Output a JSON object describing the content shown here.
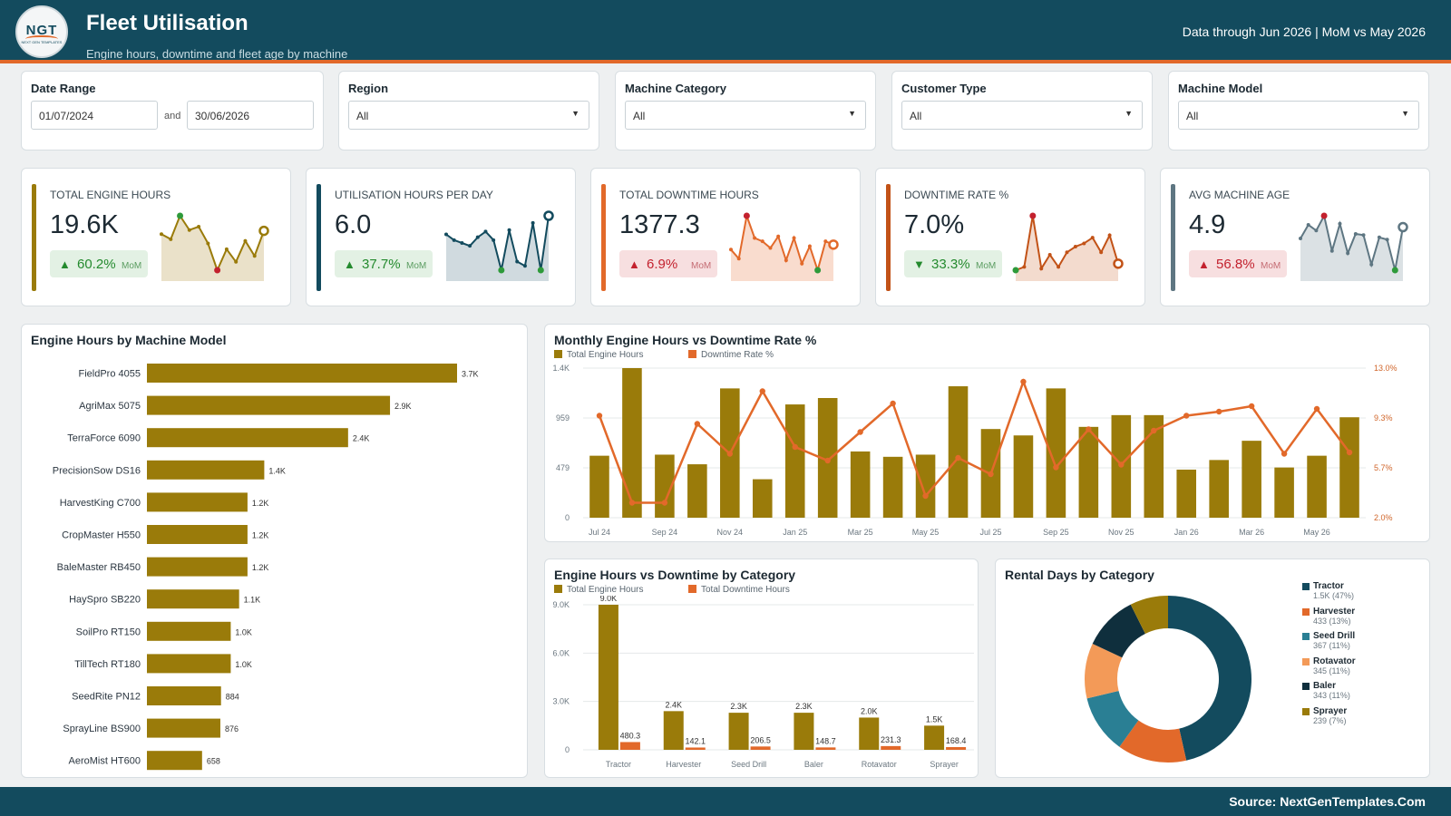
{
  "header": {
    "logo_text": "NGT",
    "logo_subtext": "NEXT GEN TEMPLATES",
    "title": "Fleet Utilisation",
    "subtitle": "Engine hours, downtime and fleet age by machine",
    "data_through": "Data through Jun 2026 | MoM vs May 2026"
  },
  "filters": {
    "date_range": {
      "label": "Date Range",
      "start": "01/07/2024",
      "joiner": "and",
      "end": "30/06/2026"
    },
    "region": {
      "label": "Region",
      "value": "All"
    },
    "machine_category": {
      "label": "Machine Category",
      "value": "All"
    },
    "customer_type": {
      "label": "Customer Type",
      "value": "All"
    },
    "machine_model": {
      "label": "Machine Model",
      "value": "All"
    }
  },
  "kpis": [
    {
      "label": "TOTAL ENGINE HOURS",
      "value": "19.6K",
      "change": "60.2%",
      "direction": "up",
      "sentiment": "good",
      "mom": "MoM",
      "color": "#9a7b0a",
      "fill": "#e6dcc0",
      "spark": [
        6.4,
        5.8,
        8.6,
        6.9,
        7.3,
        5.3,
        2.1,
        4.6,
        3.1,
        5.6,
        3.8,
        6.8
      ]
    },
    {
      "label": "UTILISATION HOURS PER DAY",
      "value": "6.0",
      "change": "37.7%",
      "direction": "up",
      "sentiment": "good",
      "mom": "MoM",
      "color": "#134b5e",
      "fill": "#c8d4d9",
      "spark": [
        6.1,
        5.7,
        5.5,
        5.3,
        5.9,
        6.3,
        5.7,
        3.6,
        6.4,
        4.2,
        3.9,
        6.9,
        3.6,
        7.4
      ]
    },
    {
      "label": "TOTAL DOWNTIME HOURS",
      "value": "1377.3",
      "change": "6.9%",
      "direction": "up",
      "sentiment": "bad",
      "mom": "MoM",
      "color": "#e2692a",
      "fill": "#f8d6c5",
      "spark": [
        5.2,
        4.1,
        9.3,
        6.6,
        6.2,
        5.4,
        6.8,
        3.9,
        6.6,
        3.5,
        5.6,
        2.7,
        6.2,
        5.8
      ]
    },
    {
      "label": "DOWNTIME RATE %",
      "value": "7.0%",
      "change": "33.3%",
      "direction": "down",
      "sentiment": "good",
      "mom": "MoM",
      "color": "#c25217",
      "fill": "#f1d5c6",
      "spark": [
        6.2,
        6.6,
        12.9,
        6.4,
        8.1,
        6.6,
        8.4,
        9.1,
        9.5,
        10.2,
        8.4,
        10.5,
        7.0
      ]
    },
    {
      "label": "AVG MACHINE AGE",
      "value": "4.9",
      "change": "56.8%",
      "direction": "up",
      "sentiment": "bad",
      "mom": "MoM",
      "color": "#5e7682",
      "fill": "#d5dcdf",
      "spark": [
        5.9,
        7.1,
        6.6,
        7.9,
        4.8,
        7.2,
        4.6,
        6.3,
        6.2,
        3.6,
        6.0,
        5.8,
        3.1,
        6.9
      ]
    }
  ],
  "bar_chart": {
    "title": "Engine Hours by Machine Model",
    "color": "#9a7b0a",
    "chart_data": {
      "type": "bar",
      "orientation": "horizontal",
      "categories": [
        "FieldPro 4055",
        "AgriMax 5075",
        "TerraForce 6090",
        "PrecisionSow DS16",
        "HarvestKing C700",
        "CropMaster H550",
        "BaleMaster RB450",
        "HaySpro SB220",
        "SoilPro RT150",
        "TillTech RT180",
        "SeedRite PN12",
        "SprayLine BS900",
        "AeroMist HT600"
      ],
      "values": [
        3700,
        2900,
        2400,
        1400,
        1200,
        1200,
        1200,
        1100,
        1000,
        1000,
        884,
        876,
        658
      ],
      "labels": [
        "3.7K",
        "2.9K",
        "2.4K",
        "1.4K",
        "1.2K",
        "1.2K",
        "1.2K",
        "1.1K",
        "1.0K",
        "1.0K",
        "884",
        "876",
        "658"
      ]
    }
  },
  "combo_chart": {
    "title": "Monthly Engine Hours vs Downtime Rate %",
    "chart_data": {
      "type": "bar",
      "x": [
        "Jul 24",
        "Aug 24",
        "Sep 24",
        "Oct 24",
        "Nov 24",
        "Dec 24",
        "Jan 25",
        "Feb 25",
        "Mar 25",
        "Apr 25",
        "May 25",
        "Jun 25",
        "Jul 25",
        "Aug 25",
        "Sep 25",
        "Oct 25",
        "Nov 25",
        "Dec 25",
        "Jan 26",
        "Feb 26",
        "Mar 26",
        "Apr 26",
        "May 26",
        "Jun 26"
      ],
      "x_tick_labels": [
        "Jul 24",
        "Sep 24",
        "Nov 24",
        "Jan 25",
        "Mar 25",
        "May 25",
        "Jul 25",
        "Sep 25",
        "Nov 25",
        "Jan 26",
        "Mar 26",
        "May 26"
      ],
      "series": [
        {
          "name": "Total Engine Hours",
          "type": "bar",
          "axis": "left",
          "color": "#9a7b0a",
          "values": [
            580,
            1400,
            590,
            500,
            1210,
            360,
            1060,
            1120,
            620,
            570,
            590,
            1230,
            830,
            770,
            1210,
            850,
            960,
            960,
            450,
            540,
            720,
            470,
            580,
            940
          ]
        },
        {
          "name": "Downtime Rate %",
          "type": "line",
          "axis": "right",
          "color": "#e2692a",
          "values": [
            9.5,
            3.1,
            3.1,
            8.9,
            6.7,
            11.3,
            7.2,
            6.2,
            8.3,
            10.4,
            3.6,
            6.4,
            5.2,
            12.0,
            5.7,
            8.5,
            5.9,
            8.4,
            9.5,
            9.8,
            10.2,
            6.7,
            10.0,
            6.8
          ]
        }
      ],
      "y_left": {
        "min": 0,
        "max": 1400,
        "ticks": [
          "0",
          "479",
          "959",
          "1.4K"
        ]
      },
      "y_right": {
        "min": 2.0,
        "max": 13.0,
        "ticks": [
          "2.0%",
          "5.7%",
          "9.3%",
          "13.0%"
        ]
      },
      "legend": "top-left"
    }
  },
  "category_chart": {
    "title": "Engine Hours vs Downtime by Category",
    "chart_data": {
      "type": "bar",
      "categories": [
        "Tractor",
        "Harvester",
        "Seed Drill",
        "Baler",
        "Rotavator",
        "Sprayer"
      ],
      "series": [
        {
          "name": "Total Engine Hours",
          "color": "#9a7b0a",
          "values": [
            9000,
            2400,
            2300,
            2300,
            2000,
            1500
          ],
          "labels": [
            "9.0K",
            "2.4K",
            "2.3K",
            "2.3K",
            "2.0K",
            "1.5K"
          ]
        },
        {
          "name": "Total Downtime Hours",
          "color": "#e2692a",
          "values": [
            480.3,
            142.1,
            206.5,
            148.7,
            231.3,
            168.4
          ],
          "labels": [
            "480.3",
            "142.1",
            "206.5",
            "148.7",
            "231.3",
            "168.4"
          ]
        }
      ],
      "y_ticks": [
        "0",
        "3.0K",
        "6.0K",
        "9.0K"
      ],
      "ylim": [
        0,
        9000
      ],
      "legend": "top-left"
    }
  },
  "donut_chart": {
    "title": "Rental Days by Category",
    "chart_data": {
      "type": "pie",
      "style": "donut",
      "slices": [
        {
          "name": "Tractor",
          "value": 1500,
          "text": "1.5K (47%)",
          "color": "#134b5e"
        },
        {
          "name": "Harvester",
          "value": 433,
          "text": "433 (13%)",
          "color": "#e2692a"
        },
        {
          "name": "Seed Drill",
          "value": 367,
          "text": "367 (11%)",
          "color": "#2a7f94"
        },
        {
          "name": "Rotavator",
          "value": 345,
          "text": "345 (11%)",
          "color": "#f39a58"
        },
        {
          "name": "Baler",
          "value": 343,
          "text": "343 (11%)",
          "color": "#0f2f3d"
        },
        {
          "name": "Sprayer",
          "value": 239,
          "text": "239 (7%)",
          "color": "#9a7b0a"
        }
      ],
      "legend": "right"
    }
  },
  "footer": {
    "source": "Source: NextGenTemplates.Com"
  }
}
